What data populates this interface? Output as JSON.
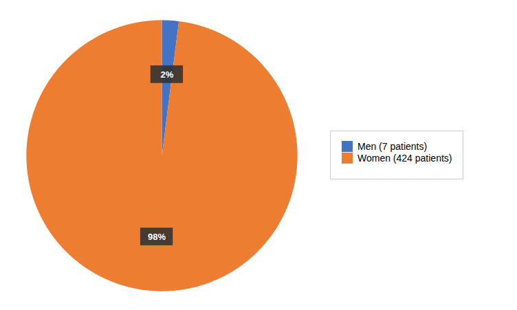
{
  "chart_data": {
    "type": "pie",
    "categories": [
      "Men (7 patients)",
      "Women (424 patients)"
    ],
    "values": [
      2,
      98
    ],
    "value_labels": [
      "2%",
      "98%"
    ],
    "colors": [
      "#4472C4",
      "#ED7D31"
    ],
    "data_labels": true,
    "legend": "right"
  }
}
